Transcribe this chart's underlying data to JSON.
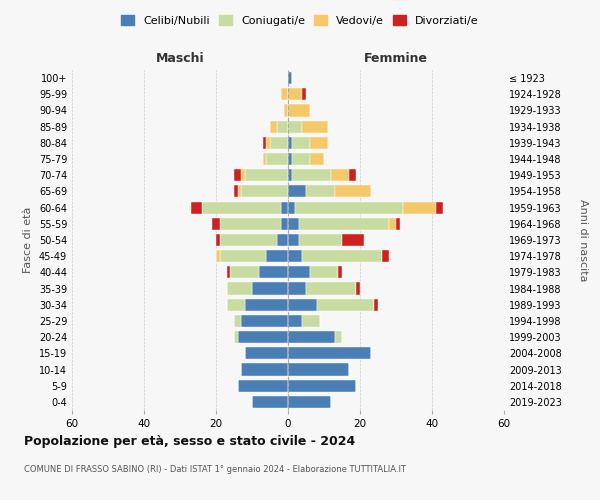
{
  "age_groups": [
    "0-4",
    "5-9",
    "10-14",
    "15-19",
    "20-24",
    "25-29",
    "30-34",
    "35-39",
    "40-44",
    "45-49",
    "50-54",
    "55-59",
    "60-64",
    "65-69",
    "70-74",
    "75-79",
    "80-84",
    "85-89",
    "90-94",
    "95-99",
    "100+"
  ],
  "birth_years": [
    "2019-2023",
    "2014-2018",
    "2009-2013",
    "2004-2008",
    "1999-2003",
    "1994-1998",
    "1989-1993",
    "1984-1988",
    "1979-1983",
    "1974-1978",
    "1969-1973",
    "1964-1968",
    "1959-1963",
    "1954-1958",
    "1949-1953",
    "1944-1948",
    "1939-1943",
    "1934-1938",
    "1929-1933",
    "1924-1928",
    "≤ 1923"
  ],
  "males": {
    "single": [
      10,
      14,
      13,
      12,
      14,
      13,
      12,
      10,
      8,
      6,
      3,
      2,
      2,
      0,
      0,
      0,
      0,
      0,
      0,
      0,
      0
    ],
    "married": [
      0,
      0,
      0,
      0,
      1,
      2,
      5,
      7,
      8,
      13,
      16,
      17,
      22,
      13,
      12,
      6,
      5,
      3,
      0,
      0,
      0
    ],
    "widowed": [
      0,
      0,
      0,
      0,
      0,
      0,
      0,
      0,
      0,
      1,
      0,
      0,
      0,
      1,
      1,
      1,
      1,
      2,
      1,
      2,
      0
    ],
    "divorced": [
      0,
      0,
      0,
      0,
      0,
      0,
      0,
      0,
      1,
      0,
      1,
      2,
      3,
      1,
      2,
      0,
      1,
      0,
      0,
      0,
      0
    ]
  },
  "females": {
    "single": [
      12,
      19,
      17,
      23,
      13,
      4,
      8,
      5,
      6,
      4,
      3,
      3,
      2,
      5,
      1,
      1,
      1,
      0,
      0,
      0,
      1
    ],
    "married": [
      0,
      0,
      0,
      0,
      2,
      5,
      16,
      14,
      8,
      22,
      12,
      25,
      30,
      8,
      11,
      5,
      5,
      4,
      0,
      0,
      0
    ],
    "widowed": [
      0,
      0,
      0,
      0,
      0,
      0,
      0,
      0,
      0,
      0,
      0,
      2,
      9,
      10,
      5,
      4,
      5,
      7,
      6,
      4,
      0
    ],
    "divorced": [
      0,
      0,
      0,
      0,
      0,
      0,
      1,
      1,
      1,
      2,
      6,
      1,
      2,
      0,
      2,
      0,
      0,
      0,
      0,
      1,
      0
    ]
  },
  "colors": {
    "single": "#4a7fb5",
    "married": "#c8dba0",
    "widowed": "#f5c96a",
    "divorced": "#cc2222"
  },
  "xlim": 60,
  "title": "Popolazione per età, sesso e stato civile - 2024",
  "subtitle": "COMUNE DI FRASSO SABINO (RI) - Dati ISTAT 1° gennaio 2024 - Elaborazione TUTTITALIA.IT",
  "ylabel_left": "Fasce di età",
  "ylabel_right": "Anni di nascita",
  "xlabel_left": "Maschi",
  "xlabel_right": "Femmine",
  "legend_labels": [
    "Celibi/Nubili",
    "Coniugati/e",
    "Vedovi/e",
    "Divorziati/e"
  ],
  "bg_color": "#f7f7f7",
  "grid_color": "#cccccc"
}
